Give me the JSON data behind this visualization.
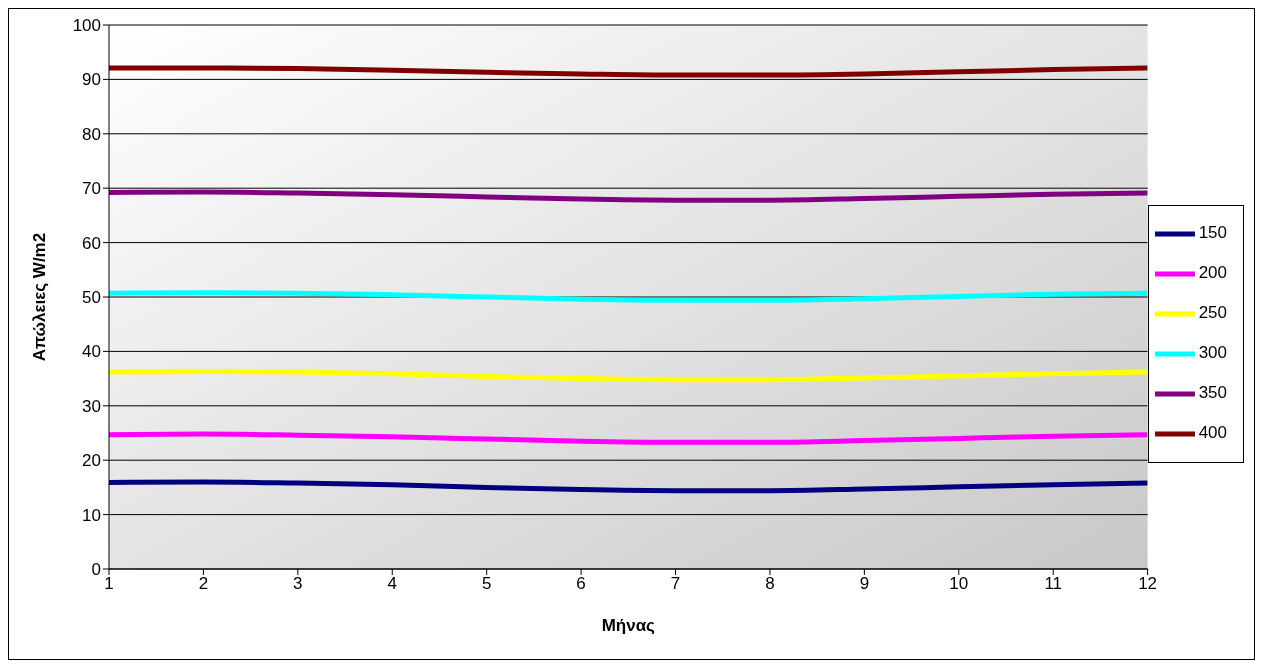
{
  "chart_data": {
    "type": "line",
    "xlabel": "Μήνας",
    "ylabel": "Απώλειες W/m2",
    "x": [
      1,
      2,
      3,
      4,
      5,
      6,
      7,
      8,
      9,
      10,
      11,
      12
    ],
    "series": [
      {
        "name": "150",
        "color": "#000080",
        "values": [
          15.9,
          16.0,
          15.8,
          15.5,
          15.0,
          14.6,
          14.4,
          14.4,
          14.7,
          15.1,
          15.5,
          15.8
        ]
      },
      {
        "name": "200",
        "color": "#ff00ff",
        "values": [
          24.7,
          24.8,
          24.6,
          24.3,
          23.9,
          23.5,
          23.3,
          23.3,
          23.6,
          24.0,
          24.4,
          24.7
        ]
      },
      {
        "name": "250",
        "color": "#ffff00",
        "values": [
          36.2,
          36.3,
          36.2,
          35.9,
          35.4,
          35.0,
          34.8,
          34.8,
          35.1,
          35.5,
          35.9,
          36.2
        ]
      },
      {
        "name": "300",
        "color": "#00ffff",
        "values": [
          50.7,
          50.8,
          50.7,
          50.4,
          50.0,
          49.6,
          49.4,
          49.4,
          49.7,
          50.1,
          50.5,
          50.7
        ]
      },
      {
        "name": "350",
        "color": "#800080",
        "values": [
          69.2,
          69.3,
          69.1,
          68.8,
          68.4,
          68.0,
          67.8,
          67.8,
          68.1,
          68.5,
          68.9,
          69.1
        ]
      },
      {
        "name": "400",
        "color": "#800000",
        "values": [
          92.1,
          92.1,
          92.0,
          91.7,
          91.3,
          91.0,
          90.8,
          90.8,
          91.0,
          91.4,
          91.8,
          92.1
        ]
      }
    ],
    "xlim": [
      1,
      12
    ],
    "xticks": [
      1,
      2,
      3,
      4,
      5,
      6,
      7,
      8,
      9,
      10,
      11,
      12
    ],
    "ylim": [
      0,
      100
    ],
    "yticks": [
      0,
      10,
      20,
      30,
      40,
      50,
      60,
      70,
      80,
      90,
      100
    ],
    "grid": "y",
    "legend": "right",
    "marker": "none",
    "line_style": "solid"
  }
}
